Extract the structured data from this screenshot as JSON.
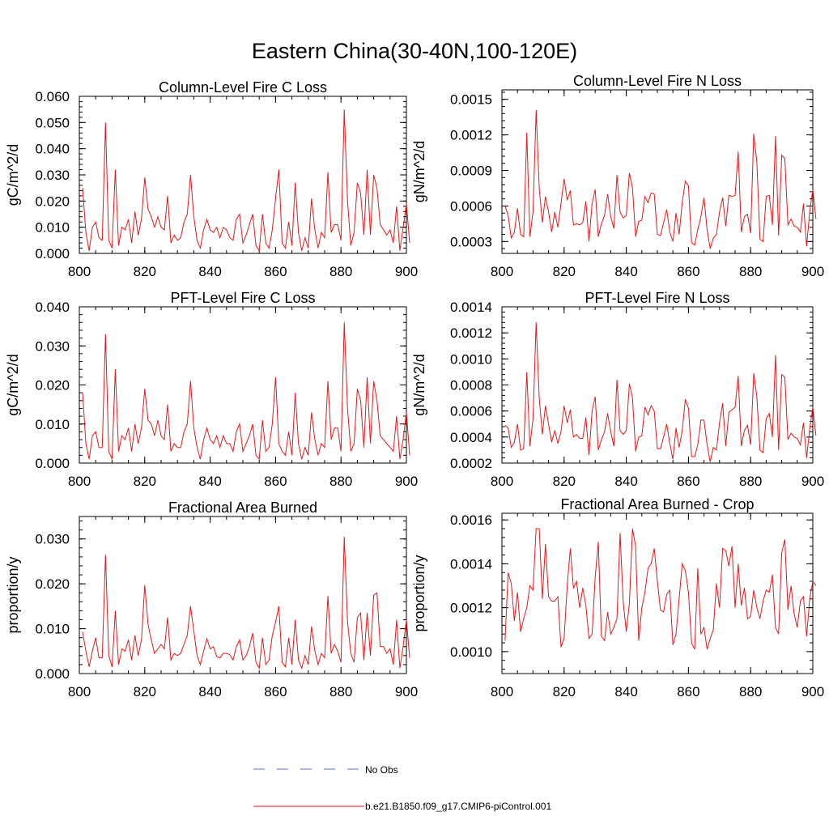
{
  "figure_title": "Eastern China(30-40N,100-120E)",
  "legend": {
    "items": [
      {
        "label": "No Obs",
        "color": "#5a6fd6",
        "style": "dashed"
      },
      {
        "label": "b.e21.B1850.f09_g17.CMIP6-piControl.001",
        "color": "#e31a1c",
        "style": "solid"
      }
    ]
  },
  "colors": {
    "model_line": "#e31a1c",
    "obs_line": "#5a6fd6",
    "axis": "#000000"
  },
  "chart_data": [
    {
      "type": "line",
      "title": "Column-Level Fire C Loss",
      "xlabel": "",
      "ylabel": "gC/m^2/d",
      "xlim": [
        800,
        900
      ],
      "ylim": [
        0,
        0.06
      ],
      "xticks": [
        800,
        820,
        840,
        860,
        880,
        900
      ],
      "xtick_labels": [
        "800",
        "820",
        "840",
        "860",
        "880",
        "900"
      ],
      "yticks": [
        0,
        0.01,
        0.02,
        0.03,
        0.04,
        0.05,
        0.06
      ],
      "ytick_labels": [
        "0.000",
        "0.010",
        "0.020",
        "0.030",
        "0.040",
        "0.050",
        "0.060"
      ],
      "series": [
        {
          "name": "b.e21.B1850.f09_g17.CMIP6-piControl.001",
          "x_start": 801,
          "values": [
            0.025,
            0.008,
            0.001,
            0.01,
            0.012,
            0.006,
            0.005,
            0.05,
            0.005,
            0.002,
            0.032,
            0.003,
            0.01,
            0.009,
            0.013,
            0.004,
            0.016,
            0.007,
            0.013,
            0.029,
            0.017,
            0.014,
            0.01,
            0.014,
            0.01,
            0.009,
            0.022,
            0.004,
            0.007,
            0.005,
            0.006,
            0.012,
            0.015,
            0.03,
            0.014,
            0.005,
            0.002,
            0.009,
            0.013,
            0.009,
            0.008,
            0.01,
            0.006,
            0.01,
            0.009,
            0.006,
            0.005,
            0.013,
            0.015,
            0.004,
            0.007,
            0.011,
            0.015,
            0.003,
            0.001,
            0.015,
            0.004,
            0.002,
            0.009,
            0.021,
            0.032,
            0.004,
            0.002,
            0.012,
            0.003,
            0.027,
            0.008,
            0.001,
            0.006,
            0.002,
            0.021,
            0.009,
            0.002,
            0.008,
            0.006,
            0.031,
            0.008,
            0.011,
            0.011,
            0.005,
            0.055,
            0.02,
            0.003,
            0.008,
            0.027,
            0.023,
            0.007,
            0.032,
            0.007,
            0.03,
            0.025,
            0.011,
            0.009,
            0.007,
            0.009,
            0.004,
            0.018,
            0.001,
            0.01,
            0.019,
            0.004
          ]
        }
      ]
    },
    {
      "type": "line",
      "title": "Column-Level Fire N Loss",
      "xlabel": "",
      "ylabel": "gN/m^2/d",
      "xlim": [
        800,
        900
      ],
      "ylim": [
        0.0002,
        0.00158
      ],
      "xticks": [
        800,
        820,
        840,
        860,
        880,
        900
      ],
      "xtick_labels": [
        "800",
        "820",
        "840",
        "860",
        "880",
        "900"
      ],
      "yticks": [
        0.0003,
        0.0006,
        0.0009,
        0.0012,
        0.0015
      ],
      "ytick_labels": [
        "0.0003",
        "0.0006",
        "0.0009",
        "0.0012",
        "0.0015"
      ],
      "series": [
        {
          "name": "b.e21.B1850.f09_g17.CMIP6-piControl.001",
          "x_start": 801,
          "values": [
            0.0006,
            0.00052,
            0.00033,
            0.00038,
            0.00058,
            0.00036,
            0.00034,
            0.00122,
            0.00034,
            0.00055,
            0.00141,
            0.00075,
            0.00046,
            0.00068,
            0.00055,
            0.00038,
            0.00055,
            0.00042,
            0.00062,
            0.00083,
            0.00065,
            0.00073,
            0.00044,
            0.00045,
            0.00044,
            0.00046,
            0.00064,
            0.0003,
            0.00062,
            0.00074,
            0.00034,
            0.00045,
            0.00052,
            0.0007,
            0.00051,
            0.00041,
            0.00086,
            0.00055,
            0.0005,
            0.00052,
            0.00088,
            0.00075,
            0.00034,
            0.00047,
            0.00048,
            0.00068,
            0.00063,
            0.00071,
            0.0007,
            0.00036,
            0.00035,
            0.00046,
            0.00057,
            0.00038,
            0.0003,
            0.00054,
            0.00036,
            0.00063,
            0.00081,
            0.00077,
            0.00029,
            0.00027,
            0.0004,
            0.00051,
            0.00067,
            0.0004,
            0.00024,
            0.00033,
            0.00036,
            0.00055,
            0.00067,
            0.00043,
            0.00069,
            0.00068,
            0.00069,
            0.00106,
            0.00038,
            0.00051,
            0.00053,
            0.00037,
            0.00121,
            0.00097,
            0.00032,
            0.0003,
            0.00068,
            0.00069,
            0.00044,
            0.00119,
            0.00035,
            0.00103,
            0.001,
            0.00044,
            0.00049,
            0.00043,
            0.00042,
            0.00038,
            0.00062,
            0.00026,
            0.00055,
            0.00074,
            0.00049
          ]
        }
      ]
    },
    {
      "type": "line",
      "title": "PFT-Level Fire C Loss",
      "xlabel": "",
      "ylabel": "gC/m^2/d",
      "xlim": [
        800,
        900
      ],
      "ylim": [
        0,
        0.04
      ],
      "xticks": [
        800,
        820,
        840,
        860,
        880,
        900
      ],
      "xtick_labels": [
        "800",
        "820",
        "840",
        "860",
        "880",
        "900"
      ],
      "yticks": [
        0,
        0.01,
        0.02,
        0.03,
        0.04
      ],
      "ytick_labels": [
        "0.000",
        "0.010",
        "0.020",
        "0.030",
        "0.040"
      ],
      "series": [
        {
          "name": "b.e21.B1850.f09_g17.CMIP6-piControl.001",
          "x_start": 801,
          "values": [
            0.018,
            0.005,
            0.001,
            0.007,
            0.008,
            0.004,
            0.004,
            0.033,
            0.003,
            0.001,
            0.024,
            0.003,
            0.007,
            0.006,
            0.009,
            0.003,
            0.01,
            0.005,
            0.009,
            0.019,
            0.011,
            0.01,
            0.007,
            0.011,
            0.007,
            0.006,
            0.015,
            0.003,
            0.005,
            0.004,
            0.004,
            0.008,
            0.01,
            0.021,
            0.009,
            0.004,
            0.001,
            0.006,
            0.009,
            0.006,
            0.005,
            0.007,
            0.004,
            0.007,
            0.005,
            0.005,
            0.003,
            0.008,
            0.01,
            0.003,
            0.005,
            0.007,
            0.01,
            0.002,
            0.001,
            0.011,
            0.003,
            0.004,
            0.01,
            0.022,
            0.005,
            0.003,
            0.002,
            0.008,
            0.002,
            0.018,
            0.005,
            0.001,
            0.004,
            0.002,
            0.013,
            0.006,
            0.002,
            0.005,
            0.004,
            0.021,
            0.006,
            0.009,
            0.009,
            0.003,
            0.036,
            0.014,
            0.003,
            0.005,
            0.019,
            0.016,
            0.004,
            0.022,
            0.005,
            0.021,
            0.016,
            0.007,
            0.006,
            0.005,
            0.004,
            0.003,
            0.012,
            0.001,
            0.006,
            0.013,
            0.002
          ]
        }
      ]
    },
    {
      "type": "line",
      "title": "PFT-Level Fire N Loss",
      "xlabel": "",
      "ylabel": "gN/m^2/d",
      "xlim": [
        800,
        900
      ],
      "ylim": [
        0.0002,
        0.0014
      ],
      "xticks": [
        800,
        820,
        840,
        860,
        880,
        900
      ],
      "xtick_labels": [
        "800",
        "820",
        "840",
        "860",
        "880",
        "900"
      ],
      "yticks": [
        0.0002,
        0.0004,
        0.0006,
        0.0008,
        0.001,
        0.0012,
        0.0014
      ],
      "ytick_labels": [
        "0.0002",
        "0.0004",
        "0.0006",
        "0.0008",
        "0.0010",
        "0.0012",
        "0.0014"
      ],
      "series": [
        {
          "name": "b.e21.B1850.f09_g17.CMIP6-piControl.001",
          "x_start": 801,
          "values": [
            0.00049,
            0.00047,
            0.00032,
            0.00036,
            0.0005,
            0.0003,
            0.00031,
            0.0009,
            0.00033,
            0.00054,
            0.00128,
            0.0007,
            0.00042,
            0.00064,
            0.0005,
            0.00036,
            0.00045,
            0.00035,
            0.00044,
            0.00064,
            0.00051,
            0.00061,
            0.0004,
            0.00042,
            0.00039,
            0.00039,
            0.00055,
            0.00026,
            0.0006,
            0.00071,
            0.0003,
            0.00038,
            0.00044,
            0.00058,
            0.00044,
            0.00033,
            0.00084,
            0.00045,
            0.00042,
            0.00045,
            0.00081,
            0.0007,
            0.00029,
            0.0004,
            0.00041,
            0.00063,
            0.00057,
            0.00064,
            0.0006,
            0.00031,
            0.00031,
            0.0004,
            0.0005,
            0.00035,
            0.00023,
            0.00047,
            0.00032,
            0.00045,
            0.00069,
            0.00062,
            0.00025,
            0.00025,
            0.00034,
            0.00053,
            0.00053,
            0.00034,
            0.00021,
            0.00032,
            0.0003,
            0.00051,
            0.00066,
            0.00033,
            0.00059,
            0.00061,
            0.00063,
            0.00087,
            0.00033,
            0.00045,
            0.00049,
            0.00034,
            0.00089,
            0.00071,
            0.0003,
            0.00028,
            0.00054,
            0.00058,
            0.0004,
            0.00103,
            0.0003,
            0.00088,
            0.00086,
            0.00038,
            0.00043,
            0.0004,
            0.00039,
            0.00034,
            0.00051,
            0.00024,
            0.00046,
            0.00063,
            0.00041
          ]
        }
      ]
    },
    {
      "type": "line",
      "title": "Fractional Area Burned",
      "xlabel": "",
      "ylabel": "proportion/y",
      "xlim": [
        800,
        900
      ],
      "ylim": [
        0,
        0.035
      ],
      "xticks": [
        800,
        820,
        840,
        860,
        880,
        900
      ],
      "xtick_labels": [
        "800",
        "820",
        "840",
        "860",
        "880",
        "900"
      ],
      "yticks": [
        0,
        0.01,
        0.02,
        0.03
      ],
      "ytick_labels": [
        "0.000",
        "0.010",
        "0.020",
        "0.030"
      ],
      "series": [
        {
          "name": "b.e21.B1850.f09_g17.CMIP6-piControl.001",
          "x_start": 801,
          "values": [
            0.0093,
            0.005,
            0.0015,
            0.005,
            0.008,
            0.0035,
            0.0035,
            0.0265,
            0.004,
            0.0015,
            0.014,
            0.002,
            0.0055,
            0.005,
            0.0075,
            0.003,
            0.0085,
            0.004,
            0.0075,
            0.0197,
            0.011,
            0.0075,
            0.0045,
            0.0055,
            0.0065,
            0.0055,
            0.0125,
            0.003,
            0.0045,
            0.004,
            0.0045,
            0.0065,
            0.0085,
            0.015,
            0.0095,
            0.004,
            0.002,
            0.005,
            0.0078,
            0.0055,
            0.006,
            0.0038,
            0.0035,
            0.0045,
            0.0045,
            0.0042,
            0.003,
            0.006,
            0.0075,
            0.003,
            0.004,
            0.006,
            0.009,
            0.0025,
            0.0012,
            0.008,
            0.002,
            0.003,
            0.0085,
            0.0115,
            0.015,
            0.0025,
            0.0015,
            0.008,
            0.002,
            0.012,
            0.003,
            0.0012,
            0.004,
            0.002,
            0.0105,
            0.005,
            0.002,
            0.0045,
            0.0035,
            0.0173,
            0.0045,
            0.0065,
            0.005,
            0.0025,
            0.0305,
            0.0115,
            0.0045,
            0.0025,
            0.0125,
            0.0135,
            0.003,
            0.0135,
            0.004,
            0.0175,
            0.018,
            0.006,
            0.006,
            0.0045,
            0.0055,
            0.002,
            0.012,
            0.0012,
            0.006,
            0.012,
            0.0035
          ]
        }
      ]
    },
    {
      "type": "line",
      "title": "Fractional Area Burned - Crop",
      "xlabel": "",
      "ylabel": "proportion/y",
      "xlim": [
        800,
        900
      ],
      "ylim": [
        0.0009,
        0.00163
      ],
      "xticks": [
        800,
        820,
        840,
        860,
        880,
        900
      ],
      "xtick_labels": [
        "800",
        "820",
        "840",
        "860",
        "880",
        "900"
      ],
      "yticks": [
        0.001,
        0.0012,
        0.0014,
        0.0016
      ],
      "ytick_labels": [
        "0.0010",
        "0.0012",
        "0.0014",
        "0.0016"
      ],
      "series": [
        {
          "name": "b.e21.B1850.f09_g17.CMIP6-piControl.001",
          "x_start": 801,
          "values": [
            0.00105,
            0.00136,
            0.00131,
            0.00114,
            0.00127,
            0.00109,
            0.00115,
            0.0012,
            0.0013,
            0.00128,
            0.00156,
            0.00156,
            0.00124,
            0.00149,
            0.00125,
            0.00123,
            0.00123,
            0.00125,
            0.00102,
            0.00106,
            0.0013,
            0.00147,
            0.00129,
            0.00132,
            0.0012,
            0.00129,
            0.00121,
            0.00106,
            0.00108,
            0.00134,
            0.0015,
            0.00107,
            0.00105,
            0.00118,
            0.00108,
            0.00111,
            0.00115,
            0.00154,
            0.00123,
            0.00109,
            0.00122,
            0.00156,
            0.00148,
            0.00105,
            0.0012,
            0.00127,
            0.00138,
            0.0014,
            0.00147,
            0.00132,
            0.00119,
            0.00118,
            0.00126,
            0.00128,
            0.00103,
            0.00108,
            0.00124,
            0.0014,
            0.00137,
            0.00127,
            0.00104,
            0.00101,
            0.00138,
            0.00108,
            0.00111,
            0.00101,
            0.00106,
            0.0011,
            0.00131,
            0.0012,
            0.00147,
            0.00146,
            0.00139,
            0.00148,
            0.0012,
            0.0014,
            0.00121,
            0.00129,
            0.00115,
            0.00116,
            0.00128,
            0.0012,
            0.00115,
            0.00123,
            0.00128,
            0.00127,
            0.00135,
            0.00111,
            0.00108,
            0.00145,
            0.00151,
            0.00119,
            0.0013,
            0.00117,
            0.00111,
            0.00123,
            0.00125,
            0.00107,
            0.00124,
            0.00132,
            0.0013
          ]
        }
      ]
    }
  ]
}
